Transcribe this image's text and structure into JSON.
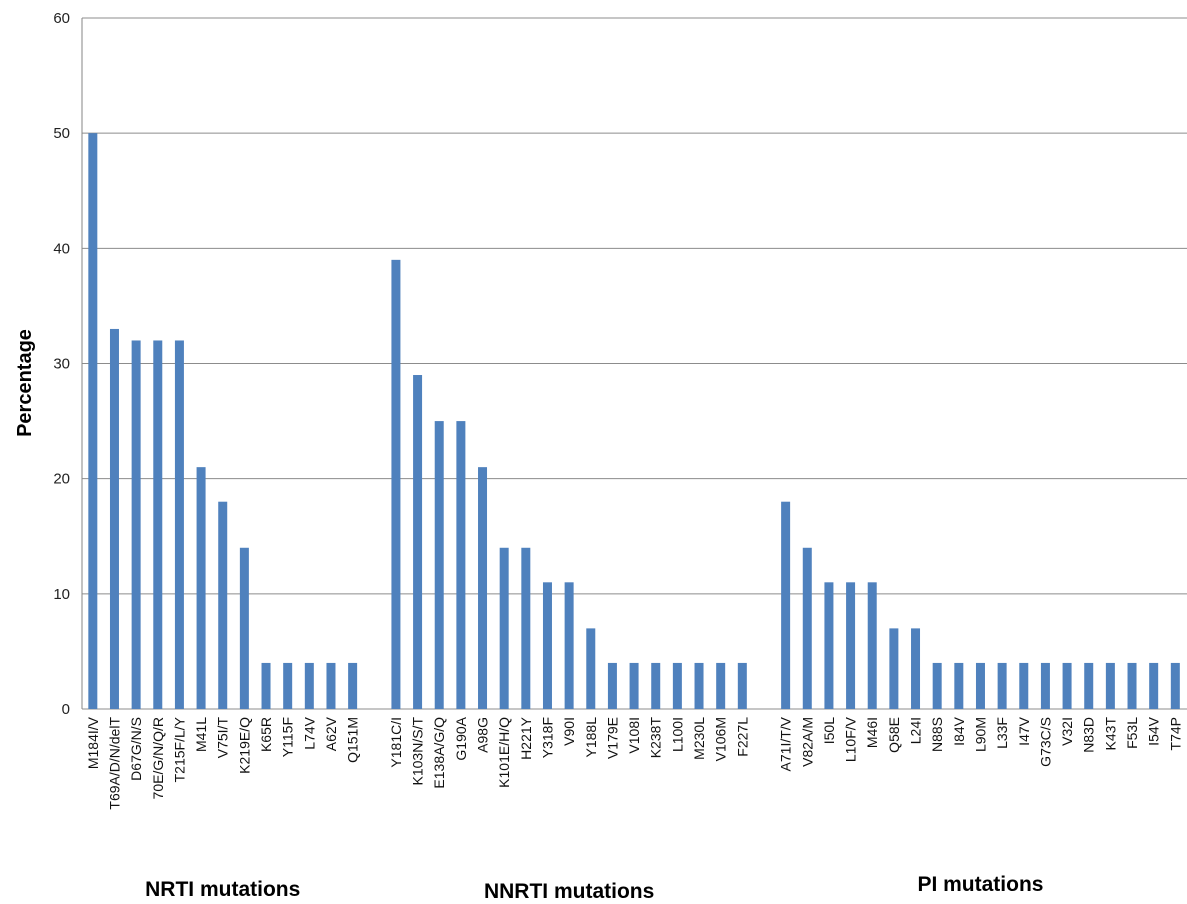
{
  "chart_data": {
    "type": "bar",
    "ylabel": "Percentage",
    "ylim": [
      0,
      60
    ],
    "yticks": [
      0,
      10,
      20,
      30,
      40,
      50,
      60
    ],
    "grid": true,
    "legend": "none",
    "color": "#4f81bd",
    "groups": [
      {
        "label": "NRTI mutations",
        "categories": [
          "M184I/V",
          "T69A/D/N/delT",
          "D67G/N/S",
          "70E/G/N/Q/R",
          "T215F/L/Y",
          "M41L",
          "V75I/T",
          "K219E/Q",
          "K65R",
          "Y115F",
          "L74V",
          "A62V",
          "Q151M"
        ],
        "values": [
          50,
          33,
          32,
          32,
          32,
          21,
          18,
          14,
          4,
          4,
          4,
          4,
          4
        ]
      },
      {
        "label": "NNRTI mutations",
        "categories": [
          "Y181C/I",
          "K103N/S/T",
          "E138A/G/Q",
          "G190A",
          "A98G",
          "K101E/H/Q",
          "H221Y",
          "Y318F",
          "V90I",
          "Y188L",
          "V179E",
          "V108I",
          "K238T",
          "L100I",
          "M230L",
          "V106M",
          "F227L"
        ],
        "values": [
          39,
          29,
          25,
          25,
          21,
          14,
          14,
          11,
          11,
          7,
          4,
          4,
          4,
          4,
          4,
          4,
          4
        ]
      },
      {
        "label": "PI mutations",
        "categories": [
          "A71I/T/V",
          "V82A/M",
          "I50L",
          "L10F/V",
          "M46I",
          "Q58E",
          "L24I",
          "N88S",
          "I84V",
          "L90M",
          "L33F",
          "I47V",
          "G73C/S",
          "V32I",
          "N83D",
          "K43T",
          "F53L",
          "I54V",
          "T74P"
        ],
        "values": [
          18,
          14,
          11,
          11,
          11,
          7,
          7,
          4,
          4,
          4,
          4,
          4,
          4,
          4,
          4,
          4,
          4,
          4,
          4
        ]
      }
    ]
  }
}
